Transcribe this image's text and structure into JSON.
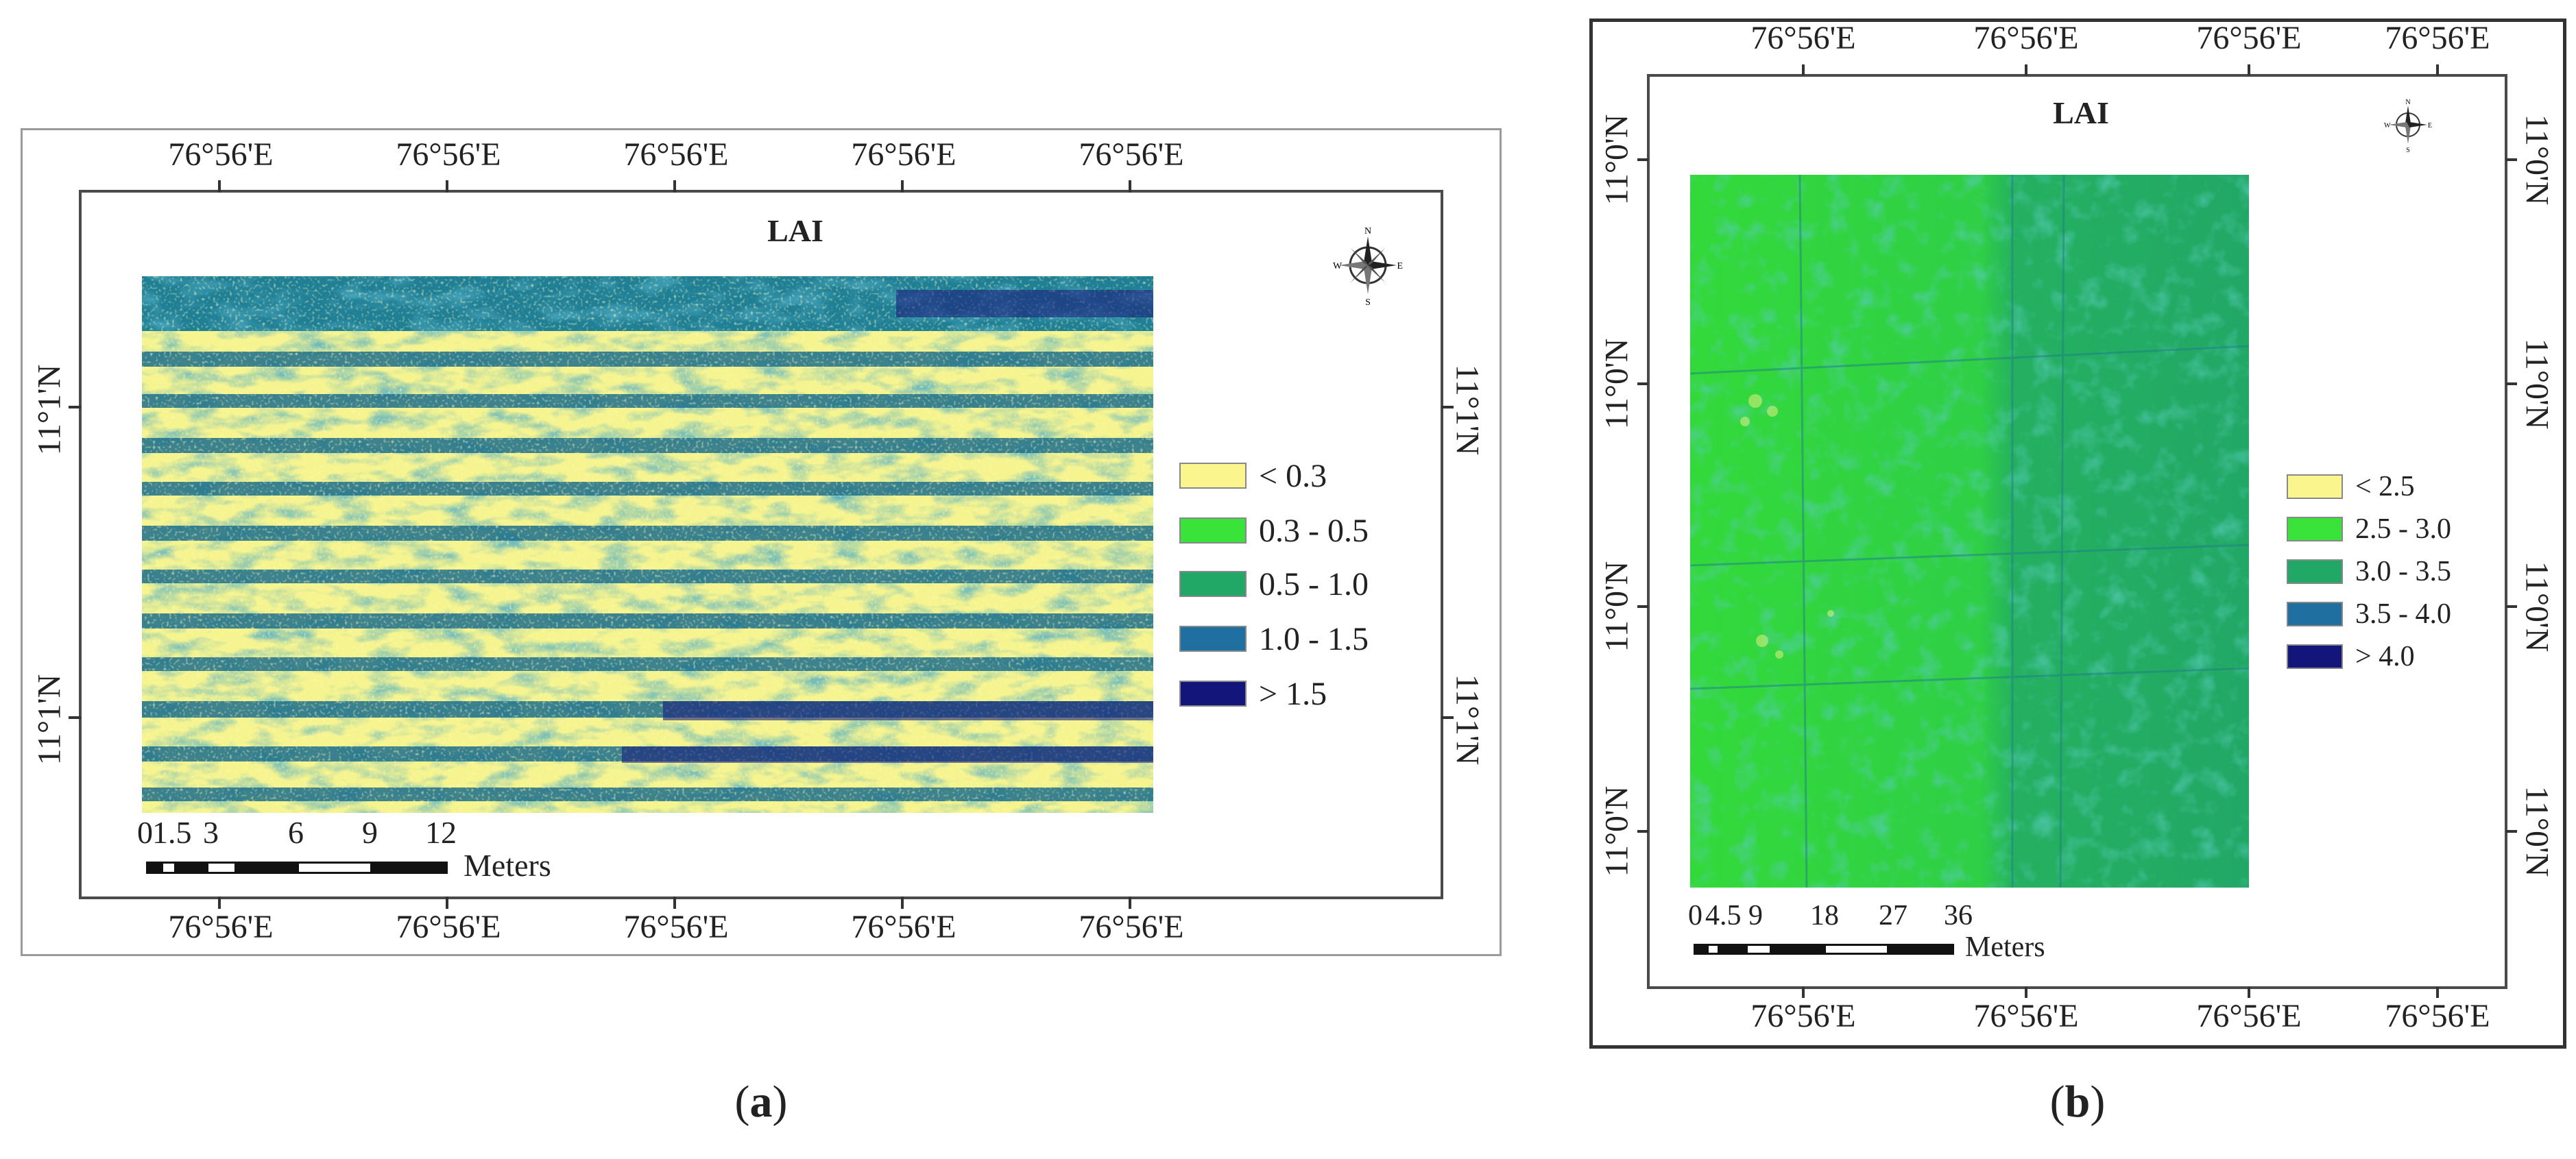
{
  "figure": {
    "panel_a": {
      "title": "LAI",
      "caption_open": "(",
      "caption_letter": "a",
      "caption_close": ")",
      "lon_labels_top": [
        "76°56'E",
        "76°56'E",
        "76°56'E",
        "76°56'E",
        "76°56'E"
      ],
      "lon_labels_bottom": [
        "76°56'E",
        "76°56'E",
        "76°56'E",
        "76°56'E",
        "76°56'E"
      ],
      "lat_labels_left": [
        "11°1'N",
        "11°1'N"
      ],
      "lat_labels_right": [
        "11°1'N",
        "11°1'N"
      ],
      "legend": [
        {
          "label": "< 0.3",
          "color": "#fbf58e"
        },
        {
          "label": "0.3 - 0.5",
          "color": "#39e33a"
        },
        {
          "label": "0.5 - 1.0",
          "color": "#21a866"
        },
        {
          "label": "1.0 - 1.5",
          "color": "#1f6fa0"
        },
        {
          "label": "> 1.5",
          "color": "#13157a"
        }
      ],
      "scale": {
        "ticks": [
          "0",
          "1.5",
          "3",
          "6",
          "9",
          "12"
        ],
        "unit": "Meters"
      },
      "compass": {
        "n": "N",
        "s": "S",
        "e": "E",
        "w": "W"
      }
    },
    "panel_b": {
      "title": "LAI",
      "caption_open": "(",
      "caption_letter": "b",
      "caption_close": ")",
      "lon_labels_top": [
        "76°56'E",
        "76°56'E",
        "76°56'E",
        "76°56'E"
      ],
      "lon_labels_bottom": [
        "76°56'E",
        "76°56'E",
        "76°56'E",
        "76°56'E"
      ],
      "lat_labels_left": [
        "11°0'N",
        "11°0'N",
        "11°0'N",
        "11°0'N"
      ],
      "lat_labels_right": [
        "11°0'N",
        "11°0'N",
        "11°0'N",
        "11°0'N"
      ],
      "legend": [
        {
          "label": "< 2.5",
          "color": "#fbf58e"
        },
        {
          "label": "2.5 - 3.0",
          "color": "#39e33a"
        },
        {
          "label": "3.0 - 3.5",
          "color": "#21a866"
        },
        {
          "label": "3.5 - 4.0",
          "color": "#1f6fa0"
        },
        {
          "label": "> 4.0",
          "color": "#13157a"
        }
      ],
      "scale": {
        "ticks": [
          "0",
          "4.5",
          "9",
          "18",
          "27",
          "36"
        ],
        "unit": "Meters"
      },
      "compass": {
        "n": "N",
        "s": "S",
        "e": "E",
        "w": "W"
      }
    }
  }
}
